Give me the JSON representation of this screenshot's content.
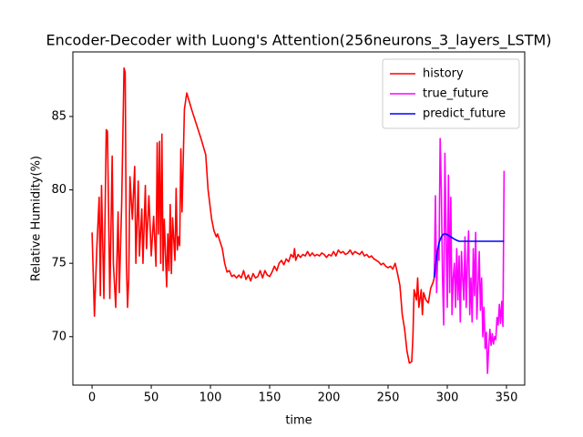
{
  "chart_data": {
    "type": "line",
    "title": "Encoder-Decoder with Luong's Attention(256neurons_3_layers_LSTM)",
    "x_label": "time",
    "y_label": "Relative Humidity(%)",
    "xlim": [
      -16.2,
      365.4
    ],
    "ylim": [
      66.7,
      89.4
    ],
    "xticks": [
      0,
      50,
      100,
      150,
      200,
      250,
      300,
      350
    ],
    "yticks": [
      70,
      75,
      80,
      85
    ],
    "legend": "upper right",
    "series": [
      {
        "name": "history",
        "color": "#ff0000",
        "x": [
          0,
          2,
          4,
          6,
          7,
          8,
          10,
          12,
          13,
          15,
          17,
          18,
          20,
          22,
          23,
          25,
          27,
          28,
          29,
          30,
          31,
          32,
          34,
          36,
          37,
          39,
          40,
          42,
          43,
          45,
          46,
          48,
          50,
          52,
          54,
          55,
          56,
          57,
          58,
          59,
          60,
          61,
          63,
          64,
          65,
          66,
          67,
          68,
          70,
          71,
          72,
          73,
          74,
          75,
          76,
          78,
          80,
          84,
          88,
          92,
          96,
          98,
          101,
          103,
          105,
          106,
          108,
          110,
          112,
          114,
          116,
          118,
          120,
          122,
          124,
          126,
          128,
          130,
          132,
          134,
          136,
          138,
          140,
          142,
          144,
          146,
          148,
          150,
          152,
          154,
          156,
          158,
          160,
          162,
          164,
          166,
          168,
          170,
          171,
          172,
          174,
          176,
          178,
          180,
          182,
          184,
          186,
          188,
          190,
          192,
          194,
          196,
          198,
          200,
          202,
          204,
          206,
          208,
          210,
          212,
          214,
          216,
          218,
          220,
          222,
          224,
          226,
          228,
          230,
          232,
          234,
          236,
          238,
          240,
          242,
          244,
          246,
          248,
          250,
          252,
          254,
          256,
          258,
          260,
          262,
          264,
          266,
          268,
          270,
          271,
          272,
          274,
          275,
          276,
          278,
          279,
          280,
          282,
          284,
          286,
          288,
          289
        ],
        "values": [
          77.1,
          71.4,
          76,
          79.5,
          72.8,
          80.3,
          72.6,
          84.1,
          84,
          72.6,
          82.3,
          75,
          72,
          78.5,
          73,
          79,
          88.3,
          88,
          75,
          72,
          74,
          80.9,
          78,
          81.6,
          75,
          80.6,
          75.5,
          78.7,
          75,
          80.3,
          76,
          79.6,
          75.5,
          78.2,
          74.8,
          83.2,
          77,
          83.3,
          75,
          83.8,
          74.5,
          78,
          73.4,
          77,
          74.5,
          79,
          74.3,
          78.1,
          75.2,
          80.1,
          75.9,
          76.8,
          76.2,
          82.8,
          78.5,
          85.5,
          86.6,
          85.5,
          84.5,
          83.5,
          82.4,
          80,
          78,
          77.2,
          76.8,
          77,
          76.5,
          76,
          75,
          74.4,
          74.5,
          74.1,
          74.2,
          74,
          74.2,
          74,
          74.5,
          73.9,
          74.2,
          73.8,
          74.3,
          74,
          74.1,
          74.5,
          74,
          74.5,
          74.2,
          74.1,
          74.4,
          74.8,
          74.5,
          75,
          75.2,
          74.9,
          75.3,
          75.1,
          75.6,
          75.4,
          76,
          75.2,
          75.6,
          75.4,
          75.6,
          75.5,
          75.8,
          75.5,
          75.7,
          75.5,
          75.6,
          75.5,
          75.7,
          75.6,
          75.4,
          75.6,
          75.5,
          75.8,
          75.5,
          75.9,
          75.7,
          75.8,
          75.6,
          75.7,
          75.9,
          75.6,
          75.8,
          75.7,
          75.6,
          75.8,
          75.5,
          75.6,
          75.4,
          75.5,
          75.3,
          75.2,
          75.1,
          74.9,
          75,
          74.8,
          74.7,
          74.8,
          74.6,
          75,
          74.3,
          73.5,
          71.5,
          70.5,
          69,
          68.2,
          68.3,
          70,
          73.2,
          72.5,
          74,
          72,
          73.2,
          71.5,
          73,
          72.5,
          72.3,
          73.3,
          73.7,
          74
        ]
      },
      {
        "name": "true_future",
        "color": "#ff00ff",
        "x": [
          289,
          290,
          291,
          292,
          293,
          294,
          295,
          296,
          297,
          298,
          299,
          300,
          301,
          302,
          303,
          304,
          305,
          306,
          307,
          308,
          309,
          310,
          311,
          312,
          313,
          314,
          315,
          316,
          317,
          318,
          319,
          320,
          321,
          322,
          323,
          324,
          325,
          326,
          327,
          328,
          329,
          330,
          331,
          332,
          333,
          334,
          335,
          336,
          337,
          338,
          339,
          340,
          341,
          342,
          343,
          344,
          345,
          346,
          347,
          348
        ],
        "values": [
          74,
          79.6,
          73,
          76,
          75.2,
          83.5,
          80,
          74,
          70.8,
          82.5,
          77,
          72,
          81,
          73,
          79.5,
          71.5,
          74,
          75,
          72,
          76,
          72.5,
          75.5,
          71,
          75.8,
          74,
          72.5,
          76.8,
          72,
          75,
          77.2,
          71.5,
          74,
          71,
          76,
          72.8,
          77.1,
          71.2,
          73.5,
          75.8,
          71.8,
          74,
          70,
          72,
          69.2,
          70.3,
          67.5,
          69.3,
          70.5,
          69.4,
          70.2,
          69.5,
          70,
          69.8,
          71.3,
          70.8,
          72.2,
          70.9,
          72.4,
          70.7,
          81.3
        ]
      },
      {
        "name": "predict_future",
        "color": "#0000ff",
        "x": [
          289,
          291,
          293,
          295,
          297,
          299,
          301,
          303,
          305,
          307,
          310,
          315,
          320,
          330,
          340,
          348
        ],
        "values": [
          74,
          75.5,
          76.4,
          76.8,
          77,
          77,
          76.9,
          76.8,
          76.7,
          76.6,
          76.5,
          76.5,
          76.5,
          76.5,
          76.5,
          76.5
        ]
      }
    ]
  }
}
